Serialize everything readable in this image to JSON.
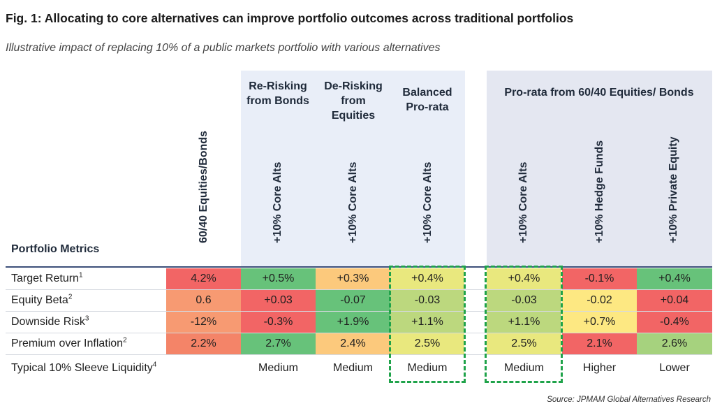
{
  "title": "Fig. 1: Allocating to core alternatives can improve portfolio outcomes across traditional portfolios",
  "subtitle": "Illustrative impact of replacing 10% of a public markets portfolio with various alternatives",
  "chart_data": {
    "type": "table",
    "metrics_header": "Portfolio Metrics",
    "group_headers": [
      {
        "label": "Re-Risking from Bonds"
      },
      {
        "label": "De-Risking from Equities"
      },
      {
        "label": "Balanced Pro-rata"
      },
      {
        "label": "Pro-rata from 60/40 Equities/ Bonds"
      }
    ],
    "columns": [
      "60/40 Equities/Bonds",
      "+10% Core Alts",
      "+10% Core Alts",
      "+10% Core Alts",
      "+10% Core Alts",
      "+10% Hedge Funds",
      "+10% Private Equity"
    ],
    "rows": [
      {
        "label": "Target Return",
        "note": "1",
        "values": [
          "4.2%",
          "+0.5%",
          "+0.3%",
          "+0.4%",
          "+0.4%",
          "-0.1%",
          "+0.4%"
        ],
        "colors": [
          "#f26565",
          "#67c27a",
          "#fcc97c",
          "#e9e87e",
          "#e9e87e",
          "#f26565",
          "#67c27a"
        ]
      },
      {
        "label": "Equity Beta",
        "note": "2",
        "values": [
          "0.6",
          "+0.03",
          "-0.07",
          "-0.03",
          "-0.03",
          "-0.02",
          "+0.04"
        ],
        "colors": [
          "#f79a72",
          "#f26565",
          "#67c27a",
          "#bcd87e",
          "#bcd87e",
          "#fde882",
          "#f26565"
        ]
      },
      {
        "label": "Downside Risk",
        "note": "3",
        "values": [
          "-12%",
          "-0.3%",
          "+1.9%",
          "+1.1%",
          "+1.1%",
          "+0.7%",
          "-0.4%"
        ],
        "colors": [
          "#f79a72",
          "#f26565",
          "#67c27a",
          "#bcd87e",
          "#bcd87e",
          "#fde882",
          "#f26565"
        ]
      },
      {
        "label": "Premium over Inflation",
        "note": "2",
        "values": [
          "2.2%",
          "2.7%",
          "2.4%",
          "2.5%",
          "2.5%",
          "2.1%",
          "2.6%"
        ],
        "colors": [
          "#f48468",
          "#67c27a",
          "#fcc97c",
          "#e9e87e",
          "#e9e87e",
          "#f26565",
          "#a6d27e"
        ]
      }
    ],
    "liquidity": {
      "label": "Typical 10% Sleeve Liquidity",
      "note": "4",
      "values": [
        "",
        "Medium",
        "Medium",
        "Medium",
        "Medium",
        "Higher",
        "Lower"
      ]
    },
    "highlighted_columns": [
      "Balanced Pro-rata +10% Core Alts",
      "Pro-rata from 60/40 +10% Core Alts"
    ]
  },
  "colors": {
    "panel_light": "#e9eef8",
    "panel_dark": "#e4e7f1",
    "rule": "#3d4f7a",
    "highlight": "#1fa34a"
  },
  "source": "Source: JPMAM Global Alternatives Research"
}
